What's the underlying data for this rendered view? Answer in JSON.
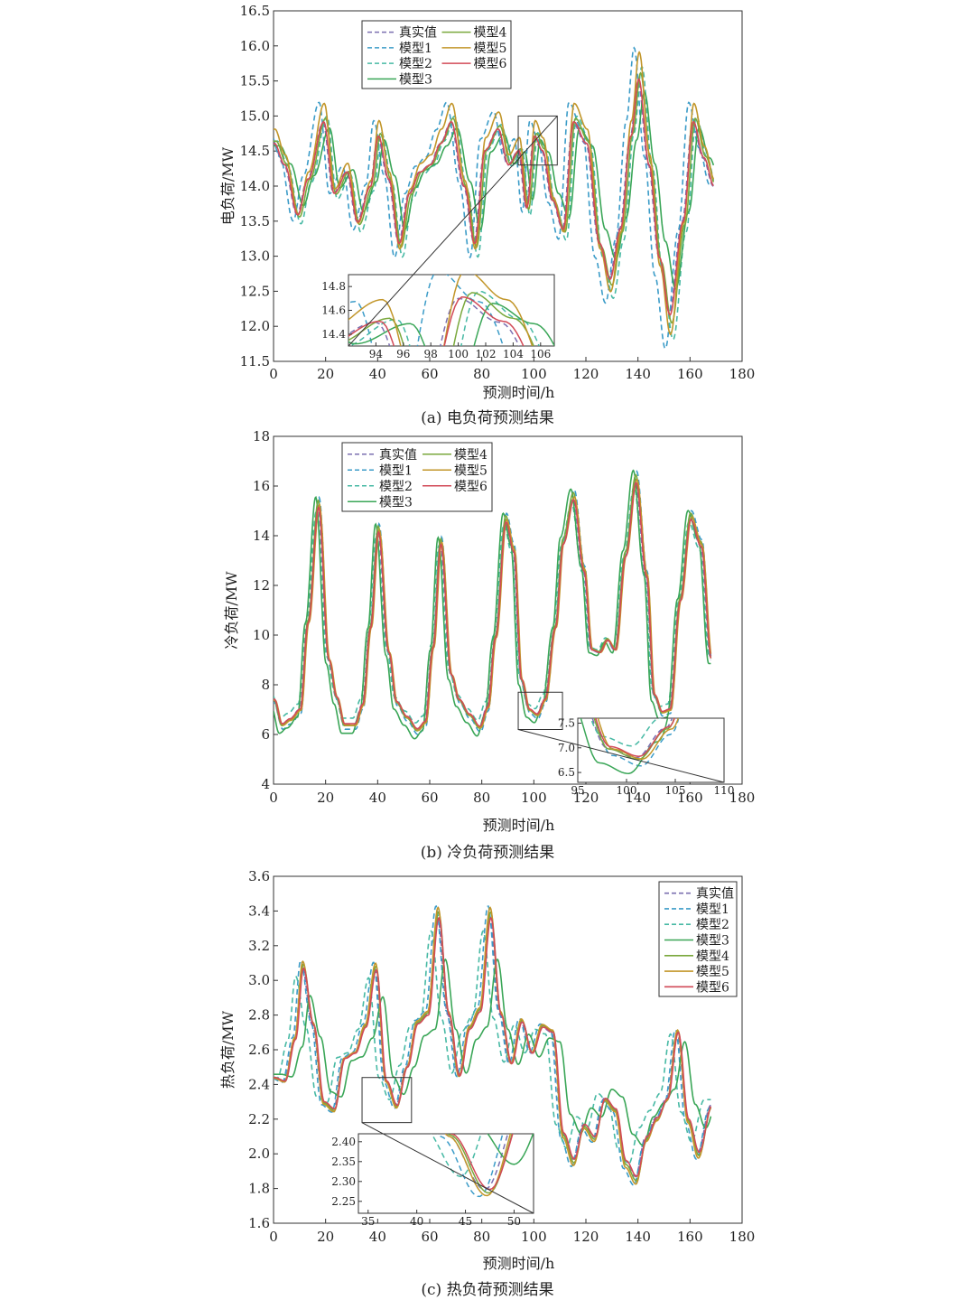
{
  "chart_data": [
    {
      "type": "line",
      "caption": "(a) 电负荷预测结果",
      "xlabel": "预测时间/h",
      "ylabel": "电负荷/MW",
      "xlim": [
        0,
        180
      ],
      "ylim": [
        11.5,
        16.5
      ],
      "xticks": [
        "0",
        "20",
        "40",
        "60",
        "80",
        "100",
        "120",
        "140",
        "160",
        "180"
      ],
      "yticks": [
        "11.5",
        "12.0",
        "12.5",
        "13.0",
        "13.5",
        "14.0",
        "14.5",
        "15.0",
        "15.5",
        "16.0",
        "16.5"
      ],
      "legend": {
        "placement": "top-left",
        "columns": 2
      },
      "inset": {
        "xlim": [
          92,
          107
        ],
        "ylim": [
          14.3,
          14.9
        ],
        "xticks": [
          "94",
          "96",
          "98",
          "100",
          "102",
          "104",
          "106"
        ],
        "yticks": [
          "14.4",
          "14.6",
          "14.8"
        ],
        "zoom_x": [
          94,
          109
        ],
        "zoom_y": [
          14.3,
          15.0
        ],
        "placement": "bottom-center"
      },
      "base": {
        "x": [
          0,
          4,
          9,
          13,
          19,
          23,
          28,
          32,
          37,
          40,
          44,
          48,
          52,
          56,
          60,
          64,
          68,
          73,
          77,
          81,
          86,
          90,
          94,
          97,
          100,
          103,
          107,
          111,
          115,
          120,
          125,
          129,
          133,
          137,
          140,
          144,
          148,
          152,
          157,
          161,
          165,
          169
        ],
        "y": [
          14.6,
          14.3,
          13.6,
          14.1,
          14.9,
          13.9,
          14.2,
          13.5,
          14.0,
          14.7,
          14.1,
          13.2,
          13.9,
          14.2,
          14.3,
          14.6,
          14.9,
          14.0,
          13.2,
          14.5,
          14.8,
          14.3,
          14.5,
          13.7,
          14.7,
          14.5,
          13.8,
          13.4,
          14.9,
          14.6,
          13.2,
          12.7,
          13.4,
          14.7,
          15.5,
          14.3,
          13.0,
          12.2,
          13.5,
          14.9,
          14.4,
          14.0
        ]
      },
      "series": [
        {
          "name": "真实值",
          "color": "#7b6fb0",
          "dash": "6,4",
          "dy": 0.0,
          "amp": 1.0,
          "shift": 0.0
        },
        {
          "name": "模型1",
          "color": "#3c9cc8",
          "dash": "6,4",
          "dy": 0.05,
          "amp": 1.3,
          "shift": -1.5
        },
        {
          "name": "模型2",
          "color": "#47b9a4",
          "dash": "6,4",
          "dy": -0.05,
          "amp": 1.18,
          "shift": 1.5
        },
        {
          "name": "模型3",
          "color": "#3aa657",
          "dash": "",
          "dy": 0.05,
          "amp": 0.85,
          "shift": 2.5
        },
        {
          "name": "模型4",
          "color": "#7aa83c",
          "dash": "",
          "dy": 0.0,
          "amp": 1.08,
          "shift": 1.0
        },
        {
          "name": "模型5",
          "color": "#c2962a",
          "dash": "",
          "dy": 0.1,
          "amp": 1.22,
          "shift": 0.5
        },
        {
          "name": "模型6",
          "color": "#d24a57",
          "dash": "",
          "dy": 0.0,
          "amp": 1.02,
          "shift": 0.3
        }
      ]
    },
    {
      "type": "line",
      "caption": "(b) 冷负荷预测结果",
      "xlabel": "预测时间/h",
      "ylabel": "冷负荷/MW",
      "xlim": [
        0,
        180
      ],
      "ylim": [
        4,
        18
      ],
      "xticks": [
        "0",
        "20",
        "40",
        "60",
        "80",
        "100",
        "120",
        "140",
        "160",
        "180"
      ],
      "yticks": [
        "4",
        "6",
        "8",
        "10",
        "12",
        "14",
        "16",
        "18"
      ],
      "legend": {
        "placement": "top-left",
        "columns": 2
      },
      "inset": {
        "xlim": [
          95,
          110
        ],
        "ylim": [
          6.3,
          7.6
        ],
        "xticks": [
          "95",
          "100",
          "105",
          "110"
        ],
        "yticks": [
          "6.5",
          "7.0",
          "7.5"
        ],
        "zoom_x": [
          94,
          111
        ],
        "zoom_y": [
          6.2,
          7.7
        ],
        "placement": "bottom-right"
      },
      "base": {
        "x": [
          0,
          3,
          6,
          10,
          13,
          17,
          21,
          24,
          27,
          31,
          34,
          37,
          40,
          44,
          47,
          51,
          55,
          58,
          61,
          64,
          68,
          71,
          75,
          79,
          82,
          85,
          89,
          92,
          95,
          98,
          101,
          104,
          108,
          111,
          115,
          119,
          122,
          125,
          128,
          131,
          135,
          139,
          143,
          146,
          149,
          152,
          156,
          160,
          164,
          168
        ],
        "y": [
          7.4,
          6.4,
          6.6,
          7.0,
          10.5,
          15.2,
          9.0,
          7.5,
          6.4,
          6.4,
          7.2,
          10.3,
          14.2,
          9.3,
          7.3,
          6.7,
          6.2,
          6.5,
          9.5,
          13.7,
          8.4,
          7.4,
          6.8,
          6.3,
          7.1,
          9.9,
          14.6,
          13.4,
          8.2,
          7.0,
          6.8,
          7.4,
          10.3,
          13.7,
          15.5,
          12.6,
          9.4,
          9.3,
          9.8,
          9.4,
          13.2,
          16.2,
          12.4,
          7.6,
          6.9,
          7.0,
          11.4,
          14.7,
          13.6,
          9.0
        ]
      },
      "series": [
        {
          "name": "真实值",
          "color": "#7b6fb0",
          "dash": "6,4",
          "dy": 0.0,
          "amp": 1.0,
          "shift": 0.0
        },
        {
          "name": "模型1",
          "color": "#3c9cc8",
          "dash": "6,4",
          "dy": 0.0,
          "amp": 1.06,
          "shift": 0.5
        },
        {
          "name": "模型2",
          "color": "#47b9a4",
          "dash": "6,4",
          "dy": 0.1,
          "amp": 0.95,
          "shift": -0.5
        },
        {
          "name": "模型3",
          "color": "#3aa657",
          "dash": "",
          "dy": -0.1,
          "amp": 1.08,
          "shift": -0.8
        },
        {
          "name": "模型4",
          "color": "#7aa83c",
          "dash": "",
          "dy": 0.05,
          "amp": 1.03,
          "shift": 0.2
        },
        {
          "name": "模型5",
          "color": "#c2962a",
          "dash": "",
          "dy": 0.0,
          "amp": 1.01,
          "shift": 0.6
        },
        {
          "name": "模型6",
          "color": "#d24a57",
          "dash": "",
          "dy": 0.0,
          "amp": 0.99,
          "shift": 0.3
        }
      ]
    },
    {
      "type": "line",
      "caption": "(c) 热负荷预测结果",
      "xlabel": "预测时间/h",
      "ylabel": "热负荷/MW",
      "xlim": [
        0,
        180
      ],
      "ylim": [
        1.6,
        3.6
      ],
      "xticks": [
        "0",
        "20",
        "40",
        "60",
        "80",
        "100",
        "120",
        "140",
        "160",
        "180"
      ],
      "yticks": [
        "1.6",
        "1.8",
        "2.0",
        "2.2",
        "2.4",
        "2.6",
        "2.8",
        "3.0",
        "3.2",
        "3.4",
        "3.6"
      ],
      "legend": {
        "placement": "top-right",
        "columns": 1
      },
      "inset": {
        "xlim": [
          34,
          52
        ],
        "ylim": [
          2.22,
          2.42
        ],
        "xticks": [
          "35",
          "40",
          "45",
          "50"
        ],
        "yticks": [
          "2.25",
          "2.30",
          "2.35",
          "2.40"
        ],
        "zoom_x": [
          34,
          53
        ],
        "zoom_y": [
          2.18,
          2.44
        ],
        "placement": "bottom-left"
      },
      "base": {
        "x": [
          0,
          4,
          8,
          11,
          15,
          19,
          23,
          27,
          31,
          35,
          39,
          43,
          47,
          51,
          55,
          59,
          63,
          67,
          71,
          75,
          79,
          83,
          87,
          91,
          95,
          99,
          103,
          107,
          111,
          115,
          119,
          123,
          127,
          131,
          135,
          139,
          143,
          147,
          151,
          155,
          159,
          163,
          168
        ],
        "y": [
          2.44,
          2.42,
          2.66,
          3.07,
          2.74,
          2.3,
          2.26,
          2.55,
          2.58,
          2.73,
          3.06,
          2.42,
          2.28,
          2.5,
          2.75,
          2.8,
          3.36,
          2.8,
          2.45,
          2.72,
          2.82,
          3.36,
          2.8,
          2.52,
          2.76,
          2.58,
          2.73,
          2.7,
          2.12,
          1.97,
          2.17,
          2.1,
          2.32,
          2.26,
          1.96,
          1.87,
          2.1,
          2.21,
          2.32,
          2.7,
          2.2,
          2.01,
          2.28
        ]
      },
      "series": [
        {
          "name": "真实值",
          "color": "#7b6fb0",
          "dash": "6,4",
          "dy": 0.0,
          "amp": 1.0,
          "shift": 0.0
        },
        {
          "name": "模型1",
          "color": "#3c9cc8",
          "dash": "6,4",
          "dy": 0.0,
          "amp": 1.08,
          "shift": -0.6
        },
        {
          "name": "模型2",
          "color": "#47b9a4",
          "dash": "6,4",
          "dy": 0.01,
          "amp": 0.9,
          "shift": -2.5
        },
        {
          "name": "模型3",
          "color": "#3aa657",
          "dash": "",
          "dy": 0.0,
          "amp": 0.72,
          "shift": 3.0
        },
        {
          "name": "模型4",
          "color": "#7aa83c",
          "dash": "",
          "dy": 0.0,
          "amp": 1.04,
          "shift": 0.4
        },
        {
          "name": "模型5",
          "color": "#c2962a",
          "dash": "",
          "dy": 0.0,
          "amp": 1.07,
          "shift": 0.2
        },
        {
          "name": "模型6",
          "color": "#d24a57",
          "dash": "",
          "dy": 0.0,
          "amp": 1.0,
          "shift": 0.5
        }
      ]
    }
  ]
}
